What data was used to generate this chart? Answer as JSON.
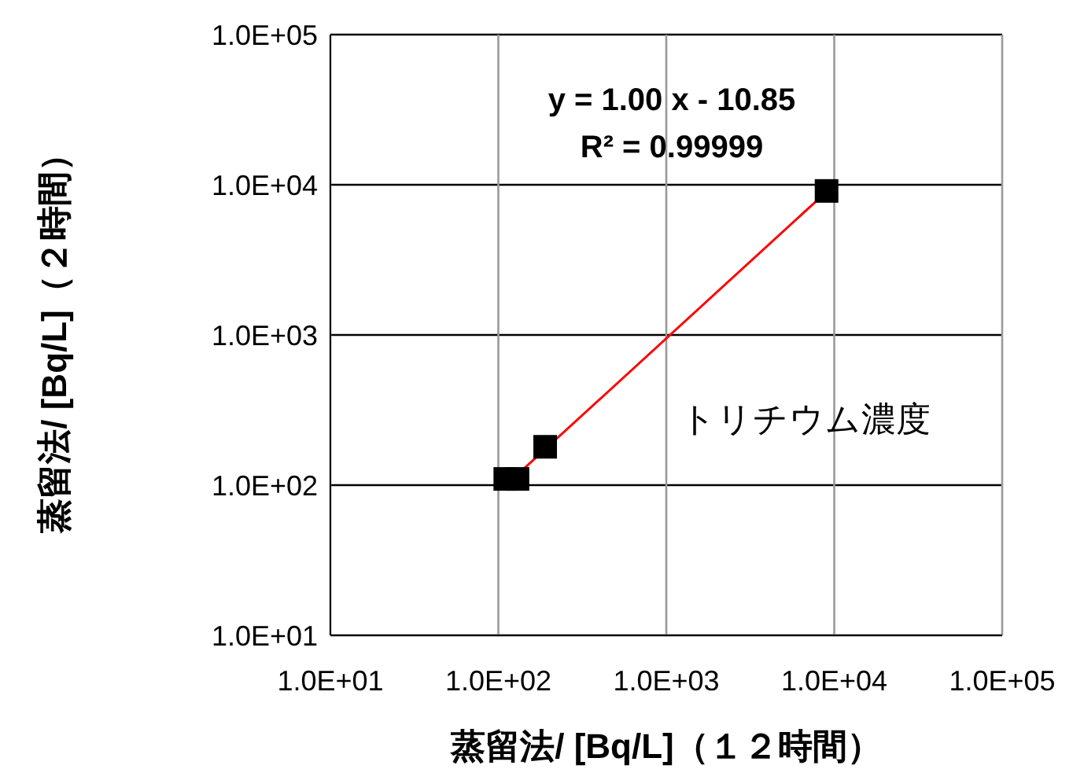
{
  "chart_data": {
    "type": "scatter",
    "xlabel": "蒸留法/ [Bq/L]（１２時間）",
    "ylabel": "蒸留法/ [Bq/L]（２時間）",
    "log": "xy",
    "grid": true,
    "legend": false,
    "xlim": [
      10,
      100000
    ],
    "ylim": [
      10,
      100000
    ],
    "xticks": [
      {
        "value": 10,
        "label": "1.0E+01"
      },
      {
        "value": 100,
        "label": "1.0E+02"
      },
      {
        "value": 1000,
        "label": "1.0E+03"
      },
      {
        "value": 10000,
        "label": "1.0E+04"
      },
      {
        "value": 100000,
        "label": "1.0E+05"
      }
    ],
    "yticks": [
      {
        "value": 10,
        "label": "1.0E+01"
      },
      {
        "value": 100,
        "label": "1.0E+02"
      },
      {
        "value": 1000,
        "label": "1.0E+03"
      },
      {
        "value": 10000,
        "label": "1.0E+04"
      },
      {
        "value": 100000,
        "label": "1.0E+05"
      }
    ],
    "annotations": [
      "y = 1.00 x - 10.85",
      "R² = 0.99999"
    ],
    "series": [
      {
        "name": "トリチウム濃度",
        "marker": "square",
        "color": "#000000",
        "x": [
          110,
          130,
          190,
          9000
        ],
        "values": [
          110,
          110,
          180,
          9100
        ]
      },
      {
        "type": "line",
        "marker": "none",
        "color": "#ff0000",
        "x": [
          110,
          9000
        ],
        "values": [
          99.15,
          8989.15
        ]
      }
    ]
  }
}
